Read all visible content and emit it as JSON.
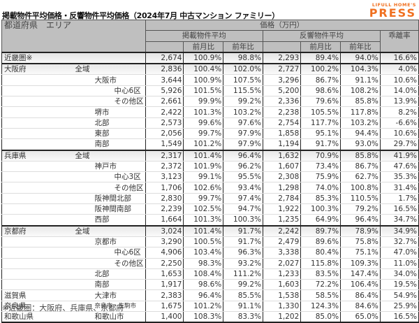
{
  "title": "掲載物件平均価格・反響物件平均価格（2024年7月 中古マンション ファミリー）",
  "logo": {
    "top": "LIFULL HOME'S",
    "bottom": "PRESS",
    "color": "#f07020"
  },
  "header": {
    "area": "都道府県　エリア",
    "price": "価格（万円）",
    "listed": "掲載物件平均",
    "response": "反響物件平均",
    "gap": "乖離率",
    "mom": "前月比",
    "yoy": "前年比"
  },
  "rows": [
    {
      "pref": "近畿圏※",
      "area": "",
      "indent": 0,
      "l": "2,674",
      "lm": "100.9%",
      "ly": "98.8%",
      "r": "2,293",
      "rm": "89.4%",
      "ry": "94.0%",
      "g": "16.6%"
    },
    {
      "pref": "大阪府",
      "area": "全域",
      "indent": 1,
      "l": "2,836",
      "lm": "100.4%",
      "ly": "102.0%",
      "r": "2,727",
      "rm": "100.2%",
      "ry": "104.3%",
      "g": "4.0%"
    },
    {
      "pref": "",
      "area": "大阪市",
      "indent": 2,
      "l": "3,644",
      "lm": "100.9%",
      "ly": "107.5%",
      "r": "3,296",
      "rm": "86.7%",
      "ry": "91.1%",
      "g": "10.6%"
    },
    {
      "pref": "",
      "area": "中心6区",
      "indent": 3,
      "l": "5,926",
      "lm": "101.5%",
      "ly": "115.5%",
      "r": "5,200",
      "rm": "98.6%",
      "ry": "108.2%",
      "g": "14.0%"
    },
    {
      "pref": "",
      "area": "その他区",
      "indent": 3,
      "l": "2,661",
      "lm": "99.9%",
      "ly": "99.2%",
      "r": "2,336",
      "rm": "79.6%",
      "ry": "85.8%",
      "g": "13.9%"
    },
    {
      "pref": "",
      "area": "堺市",
      "indent": 2,
      "l": "2,422",
      "lm": "101.3%",
      "ly": "103.2%",
      "r": "2,238",
      "rm": "105.5%",
      "ry": "117.8%",
      "g": "8.2%"
    },
    {
      "pref": "",
      "area": "北部",
      "indent": 2,
      "l": "2,573",
      "lm": "99.6%",
      "ly": "97.6%",
      "r": "2,754",
      "rm": "117.7%",
      "ry": "103.2%",
      "g": "-6.6%"
    },
    {
      "pref": "",
      "area": "東部",
      "indent": 2,
      "l": "2,056",
      "lm": "99.7%",
      "ly": "97.9%",
      "r": "1,858",
      "rm": "95.1%",
      "ry": "94.4%",
      "g": "10.6%"
    },
    {
      "pref": "",
      "area": "南部",
      "indent": 2,
      "l": "1,549",
      "lm": "101.2%",
      "ly": "97.9%",
      "r": "1,194",
      "rm": "91.7%",
      "ry": "93.0%",
      "g": "29.7%"
    },
    {
      "pref": "兵庫県",
      "area": "全域",
      "indent": 1,
      "l": "2,317",
      "lm": "101.4%",
      "ly": "96.4%",
      "r": "1,632",
      "rm": "70.9%",
      "ry": "85.8%",
      "g": "41.9%"
    },
    {
      "pref": "",
      "area": "神戸市",
      "indent": 2,
      "l": "2,372",
      "lm": "101.9%",
      "ly": "96.2%",
      "r": "1,607",
      "rm": "73.4%",
      "ry": "86.7%",
      "g": "47.6%"
    },
    {
      "pref": "",
      "area": "中心3区",
      "indent": 3,
      "l": "3,123",
      "lm": "99.1%",
      "ly": "95.5%",
      "r": "2,308",
      "rm": "75.9%",
      "ry": "62.7%",
      "g": "35.3%"
    },
    {
      "pref": "",
      "area": "その他区",
      "indent": 3,
      "l": "1,706",
      "lm": "102.6%",
      "ly": "93.4%",
      "r": "1,298",
      "rm": "74.0%",
      "ry": "100.8%",
      "g": "31.4%"
    },
    {
      "pref": "",
      "area": "阪神間北部",
      "indent": 2,
      "l": "2,830",
      "lm": "99.7%",
      "ly": "97.4%",
      "r": "2,784",
      "rm": "85.3%",
      "ry": "110.5%",
      "g": "1.7%"
    },
    {
      "pref": "",
      "area": "阪神間南部",
      "indent": 2,
      "l": "2,239",
      "lm": "102.5%",
      "ly": "94.7%",
      "r": "1,922",
      "rm": "100.3%",
      "ry": "79.2%",
      "g": "16.5%"
    },
    {
      "pref": "",
      "area": "西部",
      "indent": 2,
      "l": "1,664",
      "lm": "101.3%",
      "ly": "100.3%",
      "r": "1,235",
      "rm": "64.9%",
      "ry": "96.4%",
      "g": "34.7%"
    },
    {
      "pref": "京都府",
      "area": "全域",
      "indent": 1,
      "l": "3,024",
      "lm": "101.4%",
      "ly": "91.7%",
      "r": "2,242",
      "rm": "89.7%",
      "ry": "78.9%",
      "g": "34.9%"
    },
    {
      "pref": "",
      "area": "京都市",
      "indent": 2,
      "l": "3,290",
      "lm": "100.5%",
      "ly": "91.7%",
      "r": "2,479",
      "rm": "89.6%",
      "ry": "75.8%",
      "g": "32.7%"
    },
    {
      "pref": "",
      "area": "中心6区",
      "indent": 3,
      "l": "4,906",
      "lm": "103.4%",
      "ly": "96.3%",
      "r": "3,338",
      "rm": "80.4%",
      "ry": "75.1%",
      "g": "47.0%"
    },
    {
      "pref": "",
      "area": "その他区",
      "indent": 3,
      "l": "2,250",
      "lm": "98.3%",
      "ly": "93.2%",
      "r": "2,027",
      "rm": "115.8%",
      "ry": "109.3%",
      "g": "11.0%"
    },
    {
      "pref": "",
      "area": "北部",
      "indent": 2,
      "l": "1,653",
      "lm": "108.4%",
      "ly": "111.2%",
      "r": "1,233",
      "rm": "83.5%",
      "ry": "147.4%",
      "g": "34.0%"
    },
    {
      "pref": "",
      "area": "南部",
      "indent": 2,
      "l": "1,917",
      "lm": "98.6%",
      "ly": "99.2%",
      "r": "1,603",
      "rm": "72.2%",
      "ry": "106.4%",
      "g": "19.5%"
    },
    {
      "pref": "滋賀県",
      "area": "大津市",
      "indent": 2,
      "l": "2,383",
      "lm": "96.4%",
      "ly": "85.5%",
      "r": "1,538",
      "rm": "58.5%",
      "ry": "86.4%",
      "g": "54.9%"
    },
    {
      "pref": "奈良県",
      "area": "奈良市・生駒市",
      "indent": 2,
      "l": "1,675",
      "lm": "101.2%",
      "ly": "91.1%",
      "r": "1,330",
      "rm": "124.3%",
      "ry": "84.6%",
      "g": "25.9%"
    },
    {
      "pref": "和歌山県",
      "area": "和歌山市",
      "indent": 2,
      "l": "1,400",
      "lm": "108.3%",
      "ly": "83.3%",
      "r": "1,202",
      "rm": "85.0%",
      "ry": "65.0%",
      "g": "16.5%"
    }
  ],
  "note": "※近畿圏：大阪府、兵庫県、京都府"
}
